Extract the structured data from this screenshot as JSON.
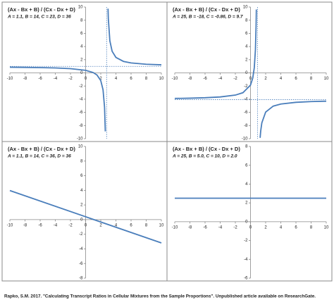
{
  "chart_data": [
    {
      "type": "line",
      "title": "(Ax - Bx + B) / (Cx - Dx + D)",
      "subtitle": "A = 1.1, B = 14, C = 23, D = 36",
      "x": [
        -10,
        -8,
        -6,
        -4,
        -2,
        0,
        1,
        1.5,
        2,
        2.3,
        2.5,
        2.6,
        2.77,
        2.96,
        3,
        3.2,
        3.5,
        4,
        5,
        6,
        8,
        10
      ],
      "series": [
        {
          "color": "#4a7ebb",
          "values": [
            0.861,
            0.837,
            0.802,
            0.745,
            0.642,
            0.389,
            0.048,
            -0.324,
            -1.18,
            -2.569,
            -5.214,
            -8.882,
            null,
            9.752,
            8.233,
            4.871,
            3.279,
            2.35,
            1.741,
            1.51,
            1.312,
            1.223
          ]
        }
      ],
      "asymptotes": {
        "x": 2.77,
        "y": 0.99
      },
      "xlim": [
        -10,
        10
      ],
      "xticks": [
        -10,
        -8,
        -6,
        -4,
        -2,
        0,
        2,
        4,
        6,
        8,
        10
      ],
      "ylim": [
        -10,
        10
      ],
      "yticks": [
        -10,
        -8,
        -6,
        -4,
        -2,
        0,
        2,
        4,
        6,
        8,
        10
      ]
    },
    {
      "type": "line",
      "title": "(Ax - Bx + B) / (Cx - Dx + D)",
      "subtitle": "A = 25, B = -18, C = -0.86, D = 9.7",
      "x": [
        -10,
        -8,
        -6,
        -4,
        -2,
        -1,
        0,
        0.3,
        0.5,
        0.65,
        0.74,
        0.77,
        0.92,
        1.27,
        1.35,
        1.5,
        2,
        3,
        4,
        6,
        8,
        10
      ],
      "series": [
        {
          "color": "#4a7ebb",
          "values": [
            -3.885,
            -3.844,
            -3.778,
            -3.658,
            -3.374,
            -3.011,
            -1.856,
            -0.781,
            0.792,
            3.508,
            7.328,
            9.63,
            null,
            -9.865,
            -8.791,
            -7.573,
            -5.954,
            -5.05,
            -4.733,
            -4.473,
            -4.359,
            -4.296
          ]
        }
      ],
      "asymptotes": {
        "x": 0.92,
        "y": -4.07
      },
      "xlim": [
        -10,
        10
      ],
      "xticks": [
        -10,
        -8,
        -6,
        -4,
        -2,
        0,
        2,
        4,
        6,
        8,
        10
      ],
      "ylim": [
        -10,
        10
      ],
      "yticks": [
        -10,
        -8,
        -6,
        -4,
        -2,
        0,
        2,
        4,
        6,
        8,
        10
      ]
    },
    {
      "type": "line",
      "title": "(Ax - Bx + B) / (Cx - Dx + D)",
      "subtitle": "A = 1.1, B = 14, C = 36, D = 36",
      "x": [
        -10,
        10
      ],
      "series": [
        {
          "color": "#4a7ebb",
          "values": [
            3.97,
            -3.19
          ]
        }
      ],
      "xlim": [
        -10,
        10
      ],
      "xticks": [
        -10,
        -8,
        -6,
        -4,
        -2,
        0,
        2,
        4,
        6,
        8,
        10
      ],
      "ylim": [
        -8,
        10
      ],
      "yticks": [
        -8,
        -6,
        -4,
        -2,
        0,
        2,
        4,
        6,
        8,
        10
      ]
    },
    {
      "type": "line",
      "title": "(Ax - Bx + B) / (Cx - Dx + D)",
      "subtitle": "A = 25, B = 5.0, C = 10, D = 2.0",
      "x": [
        -10,
        10
      ],
      "series": [
        {
          "color": "#4a7ebb",
          "values": [
            2.5,
            2.5
          ]
        }
      ],
      "xlim": [
        -10,
        10
      ],
      "xticks": [
        -10,
        -8,
        -6,
        -4,
        -2,
        0,
        2,
        4,
        6,
        8,
        10
      ],
      "ylim": [
        -6,
        8
      ],
      "yticks": [
        -6,
        -4,
        -2,
        0,
        2,
        4,
        6,
        8
      ]
    }
  ],
  "caption": "Rapko, S.M. 2017. \"Calculating Transcript Ratios in Cellular Mixtures from the Sample Proportions\".  Unpublished article available on ResearchGate."
}
